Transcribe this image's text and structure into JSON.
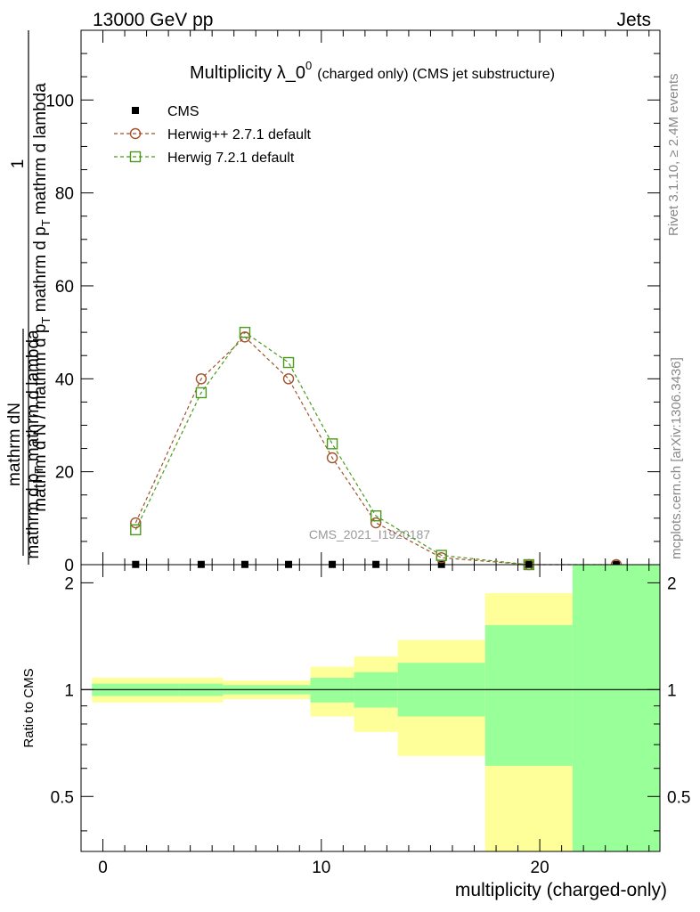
{
  "header": {
    "left_label": "13000 GeV pp",
    "right_label": "Jets"
  },
  "side_labels": {
    "rivet": "Rivet 3.1.10, ≥ 2.4M events",
    "mcplots": "mcplots.cern.ch [arXiv:1306.3436]"
  },
  "watermark": "CMS_2021_I1920187",
  "chart_data": [
    {
      "type": "line",
      "title_main": "Multiplicity λ_0",
      "title_sup": "0",
      "title_sub": "(charged only) (CMS jet substructure)",
      "ylabel_num": "mathrm dN",
      "ylabel_num_den": "mathrm d p",
      "ylabel_num_den_sub": "T",
      "ylabel_num_den_tail": " mathrm d lambda",
      "ylabel_one": "1",
      "ylabel_den": "mathrm d N / mathrm d p",
      "ylabel_den_sub": "T",
      "ylabel_den_tail": " mathrm d p",
      "ylabel_den_sub2": "T",
      "ylabel_den_tail2": " mathrm d lambda",
      "xlim": [
        -1,
        25.5
      ],
      "ylim": [
        0,
        115
      ],
      "yticks": [
        0,
        20,
        40,
        60,
        80,
        100
      ],
      "ytick_labels": [
        "0",
        "20",
        "40",
        "60",
        "80",
        "100"
      ],
      "legend_placement": "top-left",
      "series": [
        {
          "name": "CMS",
          "color": "#000000",
          "marker": "filled-square",
          "x": [
            1.5,
            4.5,
            6.5,
            8.5,
            10.5,
            12.5,
            15.5,
            19.5,
            23.5
          ],
          "y": [
            0.05,
            0.05,
            0.05,
            0.05,
            0.05,
            0.05,
            0.05,
            0.05,
            0.05
          ]
        },
        {
          "name": "Herwig++ 2.7.1 default",
          "color": "#a0522d",
          "marker": "open-circle",
          "x": [
            1.5,
            4.5,
            6.5,
            8.5,
            10.5,
            12.5,
            15.5,
            19.5,
            23.5
          ],
          "y": [
            9,
            40,
            49,
            40,
            23,
            9,
            1.5,
            0,
            0
          ]
        },
        {
          "name": "Herwig 7.2.1 default",
          "color": "#4b9a1c",
          "marker": "open-square",
          "x": [
            1.5,
            4.5,
            6.5,
            8.5,
            10.5,
            12.5,
            15.5,
            19.5
          ],
          "y": [
            7.5,
            37,
            50,
            43.5,
            26,
            10.5,
            2,
            0
          ]
        }
      ]
    },
    {
      "type": "area",
      "ylabel": "Ratio to CMS",
      "xlabel": "multiplicity (charged-only)",
      "xlim": [
        -1,
        25.5
      ],
      "ylim": [
        0.35,
        2.25
      ],
      "xticks": [
        0,
        10,
        20
      ],
      "xtick_labels": [
        "0",
        "10",
        "20"
      ],
      "yticks": [
        0.5,
        1,
        2
      ],
      "ytick_labels": [
        "0.5",
        "1",
        "2"
      ],
      "bands": [
        {
          "x0": -0.5,
          "x1": 3.5,
          "inner": [
            0.96,
            1.04
          ],
          "outer": [
            0.92,
            1.08
          ]
        },
        {
          "x0": 3.5,
          "x1": 5.5,
          "inner": [
            0.96,
            1.04
          ],
          "outer": [
            0.92,
            1.08
          ]
        },
        {
          "x0": 5.5,
          "x1": 7.5,
          "inner": [
            0.97,
            1.03
          ],
          "outer": [
            0.94,
            1.06
          ]
        },
        {
          "x0": 7.5,
          "x1": 9.5,
          "inner": [
            0.97,
            1.03
          ],
          "outer": [
            0.94,
            1.06
          ]
        },
        {
          "x0": 9.5,
          "x1": 11.5,
          "inner": [
            0.92,
            1.08
          ],
          "outer": [
            0.84,
            1.16
          ]
        },
        {
          "x0": 11.5,
          "x1": 13.5,
          "inner": [
            0.89,
            1.12
          ],
          "outer": [
            0.76,
            1.24
          ]
        },
        {
          "x0": 13.5,
          "x1": 17.5,
          "inner": [
            0.84,
            1.19
          ],
          "outer": [
            0.65,
            1.38
          ]
        },
        {
          "x0": 17.5,
          "x1": 21.5,
          "inner": [
            0.61,
            1.52
          ],
          "outer": [
            0.35,
            1.87
          ]
        },
        {
          "x0": 21.5,
          "x1": 25.5,
          "inner": [
            0.35,
            2.25
          ],
          "outer": [
            0.35,
            2.25
          ]
        }
      ]
    }
  ],
  "colors": {
    "band_inner": "#99ff99",
    "band_outer": "#ffff99",
    "watermark": "#999999",
    "side_label": "#888888"
  }
}
